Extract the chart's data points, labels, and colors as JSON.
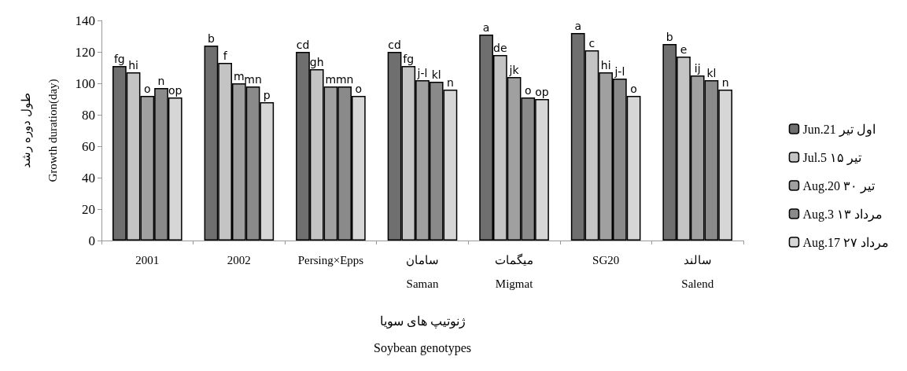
{
  "chart_data": {
    "type": "bar",
    "ylabel": "طول دوره رشد\nGrowth duration(day)",
    "xlabel": "ژنوتیپ های سویا\nSoybean genotypes",
    "categories": [
      "2001",
      "2002",
      "Persing×Epps",
      "سامان\nSaman",
      "میگمات\nMigmat",
      "SG20",
      "سالند\nSalend"
    ],
    "series": [
      {
        "name": "Jun.21 اول تیر",
        "color": "#6f6f6f",
        "values": [
          111,
          124,
          120,
          120,
          131,
          132,
          125
        ],
        "value_labels": [
          "fg",
          "b",
          "cd",
          "cd",
          "a",
          "a",
          "b"
        ]
      },
      {
        "name": "Jul.5 ۱۵ تیر",
        "color": "#c4c4c4",
        "values": [
          107,
          113,
          109,
          111,
          118,
          121,
          117
        ],
        "value_labels": [
          "hi",
          "f",
          "gh",
          "fg",
          "de",
          "c",
          "e"
        ]
      },
      {
        "name": "Aug.20 ۳۰ تیر",
        "color": "#a0a0a0",
        "values": [
          92,
          100,
          98,
          102,
          104,
          107,
          105
        ],
        "value_labels": [
          "o",
          "m",
          "m",
          "j-l",
          "jk",
          "hi",
          "ij"
        ]
      },
      {
        "name": "Aug.3 ۱۳ مرداد",
        "color": "#8a8a8a",
        "values": [
          97,
          98,
          98,
          101,
          91,
          103,
          102
        ],
        "value_labels": [
          "n",
          "mn",
          "mn",
          "kl",
          "o",
          "j-l",
          "kl"
        ]
      },
      {
        "name": "Aug.17 ۲۷ مرداد",
        "color": "#d6d6d6",
        "values": [
          91,
          88,
          92,
          96,
          90,
          92,
          96
        ],
        "value_labels": [
          "op",
          "p",
          "o",
          "n",
          "op",
          "o",
          "n"
        ]
      }
    ],
    "ylim": [
      0,
      140
    ],
    "yticks": [
      0,
      20,
      40,
      60,
      80,
      100,
      120,
      140
    ],
    "grid": false,
    "legend": "right"
  }
}
